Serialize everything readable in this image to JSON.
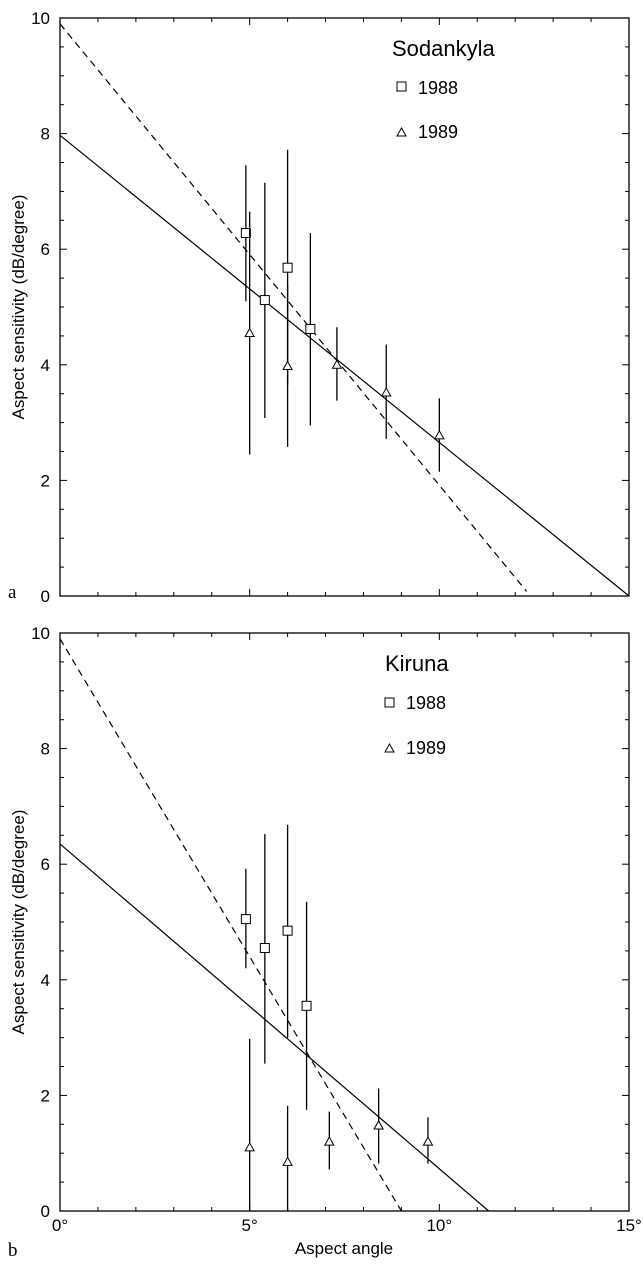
{
  "chart_data": [
    {
      "type": "scatter",
      "panel_label": "a",
      "station_title": "Sodankyla",
      "ylabel": "Aspect sensitivity (dB/degree)",
      "xlabel": "",
      "xlim": [
        0,
        15
      ],
      "ylim": [
        0,
        10
      ],
      "y_ticks": [
        "0",
        "2",
        "4",
        "6",
        "8",
        "10"
      ],
      "legend": {
        "placement": "top-right",
        "entries": [
          {
            "marker": "square",
            "label": "1988"
          },
          {
            "marker": "triangle",
            "label": "1989"
          }
        ]
      },
      "series": [
        {
          "name": "1988",
          "marker": "square",
          "points": [
            {
              "x": 4.9,
              "y": 6.28,
              "err_low": 5.1,
              "err_high": 7.45
            },
            {
              "x": 5.4,
              "y": 5.12,
              "err_low": 3.08,
              "err_high": 7.15
            },
            {
              "x": 6.0,
              "y": 5.68,
              "err_low": 3.65,
              "err_high": 7.72
            },
            {
              "x": 6.6,
              "y": 4.62,
              "err_low": 2.95,
              "err_high": 6.28
            }
          ]
        },
        {
          "name": "1989",
          "marker": "triangle",
          "points": [
            {
              "x": 5.0,
              "y": 4.55,
              "err_low": 2.45,
              "err_high": 6.65
            },
            {
              "x": 6.0,
              "y": 3.98,
              "err_low": 2.58,
              "err_high": 5.38
            },
            {
              "x": 7.3,
              "y": 4.0,
              "err_low": 3.38,
              "err_high": 4.65
            },
            {
              "x": 8.6,
              "y": 3.52,
              "err_low": 2.72,
              "err_high": 4.35
            },
            {
              "x": 10.0,
              "y": 2.78,
              "err_low": 2.15,
              "err_high": 3.42
            }
          ]
        }
      ],
      "fit_lines": [
        {
          "style": "solid",
          "x": [
            0,
            15
          ],
          "y": [
            7.97,
            0
          ]
        },
        {
          "style": "dashed",
          "x": [
            0,
            12.3
          ],
          "y": [
            9.9,
            0.08
          ]
        }
      ]
    },
    {
      "type": "scatter",
      "panel_label": "b",
      "station_title": "Kiruna",
      "ylabel": "Aspect sensitivity (dB/degree)",
      "xlabel": "Aspect angle",
      "xlim": [
        0,
        15
      ],
      "ylim": [
        0,
        10
      ],
      "x_ticks": [
        "0°",
        "5°",
        "10°",
        "15°"
      ],
      "y_ticks": [
        "0",
        "2",
        "4",
        "6",
        "8",
        "10"
      ],
      "legend": {
        "placement": "top-right",
        "entries": [
          {
            "marker": "square",
            "label": "1988"
          },
          {
            "marker": "triangle",
            "label": "1989"
          }
        ]
      },
      "series": [
        {
          "name": "1988",
          "marker": "square",
          "points": [
            {
              "x": 4.9,
              "y": 5.05,
              "err_low": 4.2,
              "err_high": 5.92
            },
            {
              "x": 5.4,
              "y": 4.55,
              "err_low": 2.55,
              "err_high": 6.52
            },
            {
              "x": 6.0,
              "y": 4.85,
              "err_low": 3.0,
              "err_high": 6.68
            },
            {
              "x": 6.5,
              "y": 3.55,
              "err_low": 1.75,
              "err_high": 5.35
            }
          ]
        },
        {
          "name": "1989",
          "marker": "triangle",
          "points": [
            {
              "x": 5.0,
              "y": 1.1,
              "err_low": 0.0,
              "err_high": 2.98
            },
            {
              "x": 6.0,
              "y": 0.85,
              "err_low": 0.0,
              "err_high": 1.82
            },
            {
              "x": 7.1,
              "y": 1.2,
              "err_low": 0.72,
              "err_high": 1.72
            },
            {
              "x": 8.4,
              "y": 1.48,
              "err_low": 0.82,
              "err_high": 2.12
            },
            {
              "x": 9.7,
              "y": 1.2,
              "err_low": 0.82,
              "err_high": 1.62
            }
          ]
        }
      ],
      "fit_lines": [
        {
          "style": "solid",
          "x": [
            0,
            11.3
          ],
          "y": [
            6.35,
            0
          ]
        },
        {
          "style": "dashed",
          "x": [
            0,
            9.0
          ],
          "y": [
            9.9,
            0
          ]
        }
      ]
    }
  ]
}
